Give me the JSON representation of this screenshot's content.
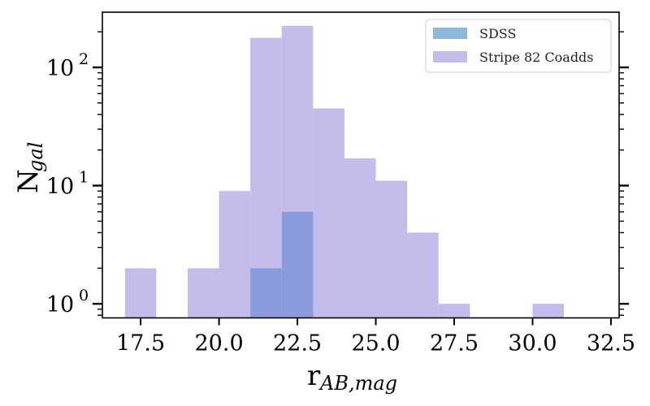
{
  "chart_data": {
    "type": "bar",
    "subtype": "histogram",
    "title": "",
    "xlabel_main": "r",
    "xlabel_sub": "AB,mag",
    "ylabel_main": "N",
    "ylabel_sub": "gal",
    "xlim": [
      16.28,
      32.76
    ],
    "ylim": [
      0.76,
      293
    ],
    "yscale": "log",
    "grid": false,
    "legend_position": "top-right",
    "bin_width": 1,
    "x_ticks": [
      17.5,
      20.0,
      22.5,
      25.0,
      27.5,
      30.0,
      32.5
    ],
    "x_tick_labels": [
      "17.5",
      "20.0",
      "22.5",
      "25.0",
      "27.5",
      "30.0",
      "32.5"
    ],
    "y_ticks": [
      1,
      10,
      100
    ],
    "y_tick_labels": [
      {
        "base": "10",
        "exp": "0"
      },
      {
        "base": "10",
        "exp": "1"
      },
      {
        "base": "10",
        "exp": "2"
      }
    ],
    "series": [
      {
        "name": "Stripe 82 Coadds",
        "color": "#c3bceb",
        "bins": [
          {
            "x0": 17,
            "x1": 18,
            "count": 2
          },
          {
            "x0": 19,
            "x1": 20,
            "count": 2
          },
          {
            "x0": 20,
            "x1": 21,
            "count": 9
          },
          {
            "x0": 21,
            "x1": 22,
            "count": 178
          },
          {
            "x0": 22,
            "x1": 23,
            "count": 225
          },
          {
            "x0": 23,
            "x1": 24,
            "count": 45
          },
          {
            "x0": 24,
            "x1": 25,
            "count": 17
          },
          {
            "x0": 25,
            "x1": 26,
            "count": 11
          },
          {
            "x0": 26,
            "x1": 27,
            "count": 4
          },
          {
            "x0": 27,
            "x1": 28,
            "count": 1
          },
          {
            "x0": 30,
            "x1": 31,
            "count": 1
          }
        ]
      },
      {
        "name": "SDSS",
        "color": "#8fb8dc",
        "overlap_color": "#8a9bdb",
        "bins": [
          {
            "x0": 21,
            "x1": 22,
            "count": 2
          },
          {
            "x0": 22,
            "x1": 23,
            "count": 6
          }
        ]
      }
    ]
  },
  "legend": {
    "items": [
      {
        "label": "SDSS",
        "color": "#8fb8dc"
      },
      {
        "label": "Stripe 82 Coadds",
        "color": "#c3bceb"
      }
    ]
  }
}
